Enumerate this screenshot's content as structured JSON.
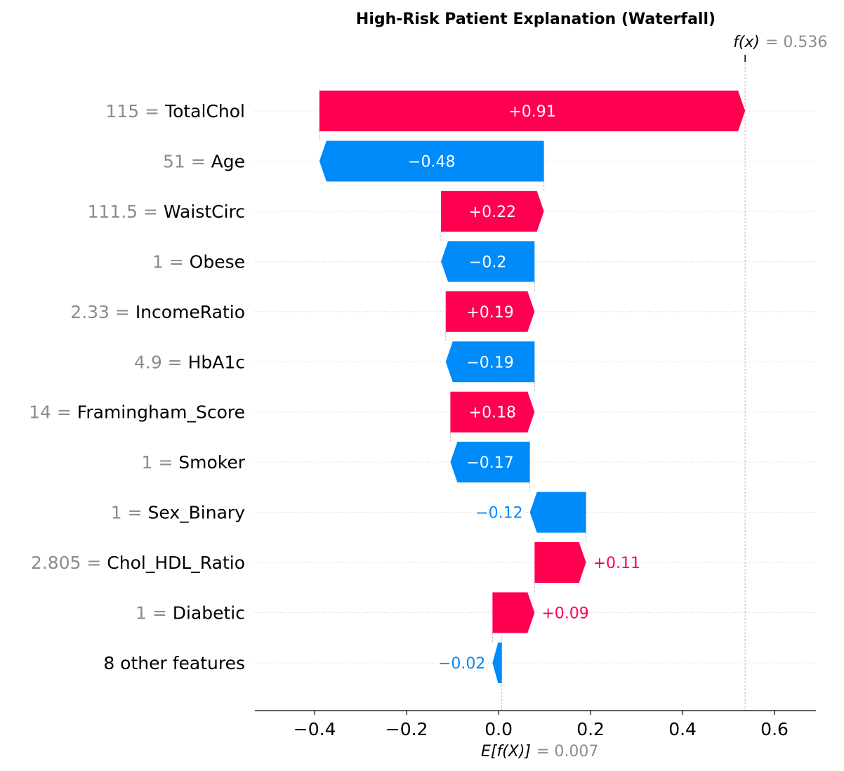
{
  "chart_data": {
    "type": "waterfall",
    "title": "High-Risk Patient Explanation (Waterfall)",
    "base_value": 0.007,
    "base_label": "E[f(X)]",
    "base_value_text": "= 0.007",
    "output_value": 0.536,
    "output_label": "f(x)",
    "output_value_text": "= 0.536",
    "xlim": [
      -0.53,
      0.69
    ],
    "xticks": [
      -0.4,
      -0.2,
      0.0,
      0.2,
      0.4,
      0.6
    ],
    "xtick_labels": [
      "−0.4",
      "−0.2",
      "0.0",
      "0.2",
      "0.4",
      "0.6"
    ],
    "features": [
      {
        "value_text": "115 =",
        "name": "TotalChol",
        "shap": 0.91,
        "label": "+0.91"
      },
      {
        "value_text": "51 =",
        "name": "Age",
        "shap": -0.48,
        "label": "−0.48"
      },
      {
        "value_text": "111.5 =",
        "name": "WaistCirc",
        "shap": 0.22,
        "label": "+0.22"
      },
      {
        "value_text": "1 =",
        "name": "Obese",
        "shap": -0.2,
        "label": "−0.2"
      },
      {
        "value_text": "2.33 =",
        "name": "IncomeRatio",
        "shap": 0.19,
        "label": "+0.19"
      },
      {
        "value_text": "4.9 =",
        "name": "HbA1c",
        "shap": -0.19,
        "label": "−0.19"
      },
      {
        "value_text": "14 =",
        "name": "Framingham_Score",
        "shap": 0.18,
        "label": "+0.18"
      },
      {
        "value_text": "1 =",
        "name": "Smoker",
        "shap": -0.17,
        "label": "−0.17"
      },
      {
        "value_text": "1 =",
        "name": "Sex_Binary",
        "shap": -0.12,
        "label": "−0.12"
      },
      {
        "value_text": "2.805 =",
        "name": "Chol_HDL_Ratio",
        "shap": 0.11,
        "label": "+0.11"
      },
      {
        "value_text": "1 =",
        "name": "Diabetic",
        "shap": 0.09,
        "label": "+0.09"
      },
      {
        "value_text": "",
        "name": "8 other features",
        "shap": -0.02,
        "label": "−0.02"
      }
    ],
    "colors": {
      "positive": "#ff0051",
      "negative": "#008bfb",
      "muted": "#8c8c8c"
    }
  }
}
